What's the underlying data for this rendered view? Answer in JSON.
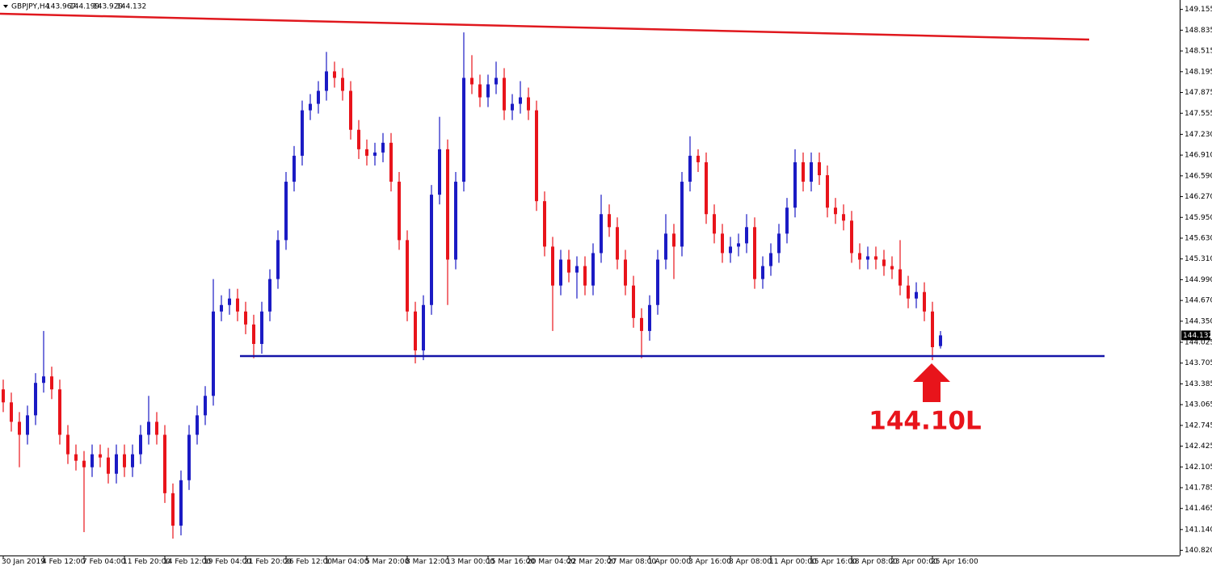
{
  "chart_data": {
    "type": "candlestick",
    "title": "GBPJPY,H4",
    "header_ohlc": [
      143.967,
      144.199,
      143.929,
      144.132
    ],
    "categories": [
      "30 Jan 2019",
      null,
      null,
      null,
      null,
      "4 Feb 12:00",
      null,
      null,
      null,
      null,
      "7 Feb 04:00",
      null,
      null,
      null,
      null,
      "11 Feb 20:00",
      null,
      null,
      null,
      null,
      "14 Feb 12:00",
      null,
      null,
      null,
      null,
      "19 Feb 04:00",
      null,
      null,
      null,
      null,
      "21 Feb 20:00",
      null,
      null,
      null,
      null,
      "26 Feb 12:00",
      null,
      null,
      null,
      null,
      "1 Mar 04:00",
      null,
      null,
      null,
      null,
      "5 Mar 20:00",
      null,
      null,
      null,
      null,
      "8 Mar 12:00",
      null,
      null,
      null,
      null,
      "13 Mar 00:00",
      null,
      null,
      null,
      null,
      "15 Mar 16:00",
      null,
      null,
      null,
      null,
      "20 Mar 04:00",
      null,
      null,
      null,
      null,
      "22 Mar 20:00",
      null,
      null,
      null,
      null,
      "27 Mar 08:00",
      null,
      null,
      null,
      null,
      "1 Apr 00:00",
      null,
      null,
      null,
      null,
      "3 Apr 16:00",
      null,
      null,
      null,
      null,
      "8 Apr 08:00",
      null,
      null,
      null,
      null,
      "11 Apr 00:00",
      null,
      null,
      null,
      null,
      "15 Apr 16:00",
      null,
      null,
      null,
      null,
      "18 Apr 08:00",
      null,
      null,
      null,
      null,
      "23 Apr 00:00",
      null,
      null,
      null,
      null,
      "25 Apr 16:00",
      null
    ],
    "candles": {
      "open": [
        143.3,
        143.1,
        142.8,
        142.6,
        142.9,
        143.4,
        143.5,
        143.3,
        142.6,
        142.3,
        142.2,
        142.1,
        142.3,
        142.25,
        142.0,
        142.3,
        142.1,
        142.3,
        142.6,
        142.8,
        142.6,
        141.7,
        141.2,
        141.9,
        142.6,
        142.9,
        143.2,
        144.5,
        144.6,
        144.7,
        144.5,
        144.3,
        144.0,
        144.5,
        145.0,
        145.6,
        146.5,
        146.9,
        147.6,
        147.7,
        147.9,
        148.2,
        148.1,
        147.9,
        147.3,
        147.0,
        146.9,
        146.95,
        147.1,
        146.5,
        145.6,
        144.5,
        143.9,
        144.6,
        146.3,
        147.0,
        145.3,
        146.5,
        148.1,
        148.0,
        147.8,
        148.0,
        148.1,
        147.6,
        147.7,
        147.8,
        147.6,
        146.2,
        145.5,
        144.9,
        145.3,
        145.1,
        145.2,
        144.9,
        145.4,
        146.0,
        145.8,
        145.3,
        144.9,
        144.4,
        144.2,
        144.6,
        145.3,
        145.7,
        145.5,
        146.5,
        146.9,
        146.8,
        146.0,
        145.7,
        145.4,
        145.5,
        145.55,
        145.8,
        145.0,
        145.2,
        145.4,
        145.7,
        146.1,
        146.8,
        146.5,
        146.8,
        146.6,
        146.1,
        146.0,
        145.9,
        145.4,
        145.3,
        145.35,
        145.3,
        145.2,
        145.15,
        144.9,
        144.7,
        144.8,
        144.5,
        143.967
      ],
      "high": [
        143.45,
        143.25,
        142.95,
        143.05,
        143.55,
        144.2,
        143.65,
        143.45,
        142.75,
        142.45,
        142.35,
        142.45,
        142.45,
        142.4,
        142.45,
        142.45,
        142.45,
        142.75,
        143.2,
        142.95,
        142.75,
        141.85,
        142.05,
        142.75,
        143.05,
        143.35,
        145.0,
        144.75,
        144.85,
        144.85,
        144.65,
        144.45,
        144.65,
        145.15,
        145.75,
        146.65,
        147.05,
        147.75,
        147.85,
        148.05,
        148.5,
        148.35,
        148.25,
        148.05,
        147.45,
        147.15,
        147.1,
        147.25,
        147.25,
        146.65,
        145.75,
        144.65,
        144.75,
        146.45,
        147.5,
        147.15,
        146.65,
        148.8,
        148.45,
        148.15,
        148.15,
        148.35,
        148.25,
        147.85,
        148.05,
        147.95,
        147.75,
        146.35,
        145.65,
        145.45,
        145.45,
        145.35,
        145.35,
        145.55,
        146.3,
        146.15,
        145.95,
        145.45,
        145.05,
        144.55,
        144.75,
        145.45,
        146.0,
        145.85,
        146.65,
        147.2,
        147.0,
        146.95,
        146.15,
        145.85,
        145.65,
        145.7,
        146.0,
        145.95,
        145.35,
        145.55,
        145.85,
        146.25,
        147.0,
        146.95,
        146.95,
        146.95,
        146.75,
        146.25,
        146.15,
        146.05,
        145.55,
        145.5,
        145.5,
        145.45,
        145.35,
        145.6,
        145.05,
        144.95,
        144.95,
        144.65,
        144.199
      ],
      "low": [
        142.95,
        142.65,
        142.1,
        142.45,
        142.75,
        143.25,
        143.15,
        142.45,
        142.15,
        142.05,
        141.1,
        141.95,
        142.1,
        141.85,
        141.85,
        141.95,
        141.95,
        142.15,
        142.45,
        142.45,
        141.55,
        141.0,
        141.05,
        141.75,
        142.45,
        142.75,
        143.05,
        144.35,
        144.45,
        144.35,
        144.15,
        143.78,
        143.85,
        144.35,
        144.85,
        145.45,
        146.35,
        146.75,
        147.45,
        147.55,
        147.75,
        147.95,
        147.75,
        147.15,
        146.85,
        146.75,
        146.75,
        146.8,
        146.35,
        145.45,
        144.35,
        143.7,
        143.75,
        144.45,
        146.15,
        144.6,
        145.15,
        146.35,
        147.85,
        147.65,
        147.65,
        147.85,
        147.45,
        147.45,
        147.55,
        147.45,
        146.05,
        145.35,
        144.2,
        144.75,
        144.95,
        144.7,
        144.75,
        144.75,
        145.25,
        145.65,
        145.15,
        144.75,
        144.25,
        143.78,
        144.05,
        144.45,
        145.15,
        145.0,
        145.35,
        146.35,
        146.65,
        145.85,
        145.55,
        145.25,
        145.25,
        145.35,
        145.4,
        144.85,
        144.85,
        145.05,
        145.25,
        145.55,
        145.95,
        146.35,
        146.35,
        146.45,
        145.95,
        145.85,
        145.75,
        145.25,
        145.15,
        145.15,
        145.15,
        145.05,
        145.0,
        144.75,
        144.55,
        144.55,
        144.35,
        143.75,
        143.929
      ],
      "close": [
        143.1,
        142.8,
        142.6,
        142.9,
        143.4,
        143.5,
        143.3,
        142.6,
        142.3,
        142.2,
        142.1,
        142.3,
        142.25,
        142.0,
        142.3,
        142.1,
        142.3,
        142.6,
        142.8,
        142.6,
        141.7,
        141.2,
        141.9,
        142.6,
        142.9,
        143.2,
        144.5,
        144.6,
        144.7,
        144.5,
        144.3,
        144.0,
        144.5,
        145.0,
        145.6,
        146.5,
        146.9,
        147.6,
        147.7,
        147.9,
        148.2,
        148.1,
        147.9,
        147.3,
        147.0,
        146.9,
        146.95,
        147.1,
        146.5,
        145.6,
        144.5,
        143.9,
        144.6,
        146.3,
        147.0,
        145.3,
        146.5,
        148.1,
        148.0,
        147.8,
        148.0,
        148.1,
        147.6,
        147.7,
        147.8,
        147.6,
        146.2,
        145.5,
        144.9,
        145.3,
        145.1,
        145.2,
        144.9,
        145.4,
        146.0,
        145.8,
        145.3,
        144.9,
        144.4,
        144.2,
        144.6,
        145.3,
        145.7,
        145.5,
        146.5,
        146.9,
        146.8,
        146.0,
        145.7,
        145.4,
        145.5,
        145.55,
        145.8,
        145.0,
        145.2,
        145.4,
        145.7,
        146.1,
        146.8,
        146.5,
        146.8,
        146.6,
        146.1,
        146.0,
        145.9,
        145.4,
        145.3,
        145.35,
        145.3,
        145.2,
        145.15,
        144.9,
        144.7,
        144.8,
        144.5,
        143.95,
        144.132
      ]
    },
    "up_color": "#1b1bc4",
    "down_color": "#e8141b",
    "current_price": 144.132,
    "trendlines": [
      {
        "color": "#e0181e",
        "start_index": -0.4,
        "end_index": 134.4,
        "start_price": 149.088,
        "end_price": 148.69
      },
      {
        "color": "#1414a8",
        "start_index": 29.3,
        "end_index": 136.3,
        "start_price": 143.813,
        "end_price": 143.813
      }
    ],
    "annotation": "144.10L",
    "annotation_color": "#e8141b",
    "ylim": [
      140.74,
      149.3
    ],
    "yticks": [
      149.155,
      148.835,
      148.515,
      148.195,
      147.875,
      147.555,
      {
        "value": 147.23,
        "label": "147.230"
      },
      {
        "value": 146.91,
        "label": "146.910"
      },
      {
        "value": 146.59,
        "label": "146.590"
      },
      {
        "value": 146.27,
        "label": "146.270"
      },
      {
        "value": 145.95,
        "label": "145.950"
      },
      {
        "value": 145.63,
        "label": "145.630"
      },
      {
        "value": 145.31,
        "label": "145.310"
      },
      {
        "value": 144.99,
        "label": "144.990"
      },
      {
        "value": 144.67,
        "label": "144.670"
      },
      {
        "value": 144.35,
        "label": "144.350"
      },
      144.025,
      143.705,
      143.385,
      143.065,
      142.745,
      142.425,
      142.105,
      141.785,
      141.465,
      {
        "value": 141.14,
        "label": "141.140"
      },
      {
        "value": 140.82,
        "label": "140.820"
      }
    ]
  }
}
